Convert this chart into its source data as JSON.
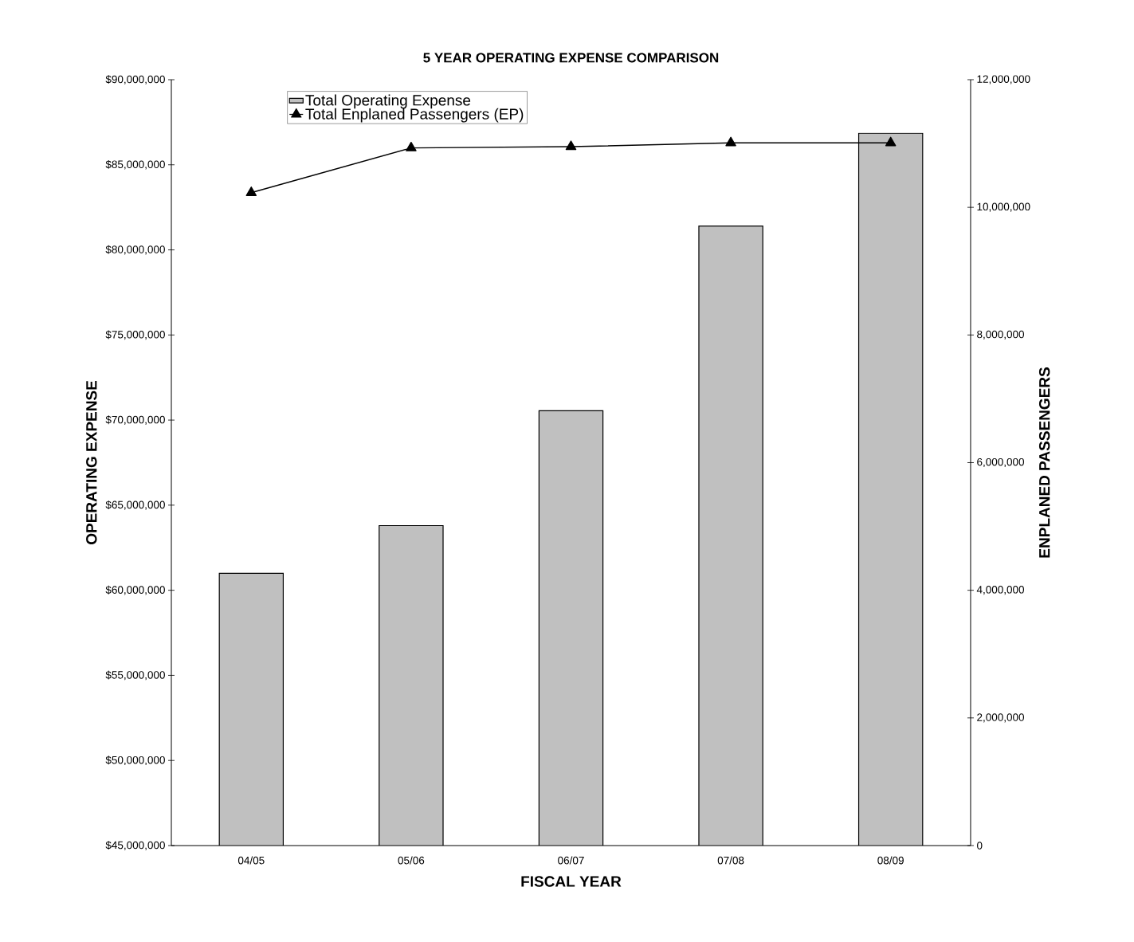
{
  "chart_data": {
    "type": "bar",
    "title": "5 YEAR OPERATING EXPENSE COMPARISON",
    "xlabel": "FISCAL YEAR",
    "ylabel": "OPERATING EXPENSE",
    "y2label": "ENPLANED PASSENGERS",
    "categories": [
      "04/05",
      "05/06",
      "06/07",
      "07/08",
      "08/09"
    ],
    "series": [
      {
        "name": "Total Operating Expense",
        "color": "#c0c0c0",
        "values": [
          61000000,
          63800000,
          70550000,
          81400000,
          86850000
        ]
      },
      {
        "name": "Total Enplaned Passengers  (EP)",
        "type": "line",
        "axis": "y2",
        "color": "#000000",
        "marker": "triangle",
        "values": [
          10230000,
          10930000,
          10950000,
          11010000,
          11010000
        ]
      }
    ],
    "ylim": [
      45000000,
      90000000
    ],
    "yticks": [
      {
        "value": 45000000,
        "label": "$45,000,000"
      },
      {
        "value": 50000000,
        "label": "$50,000,000"
      },
      {
        "value": 55000000,
        "label": "$55,000,000"
      },
      {
        "value": 60000000,
        "label": "$60,000,000"
      },
      {
        "value": 65000000,
        "label": "$65,000,000"
      },
      {
        "value": 70000000,
        "label": "$70,000,000"
      },
      {
        "value": 75000000,
        "label": "$75,000,000"
      },
      {
        "value": 80000000,
        "label": "$80,000,000"
      },
      {
        "value": 85000000,
        "label": "$85,000,000"
      },
      {
        "value": 90000000,
        "label": "$90,000,000"
      }
    ],
    "y2lim": [
      0,
      12000000
    ],
    "y2ticks": [
      0,
      {
        "value": 2000000,
        "label": "2,000,000"
      },
      {
        "value": 4000000,
        "label": "4,000,000"
      },
      {
        "value": 6000000,
        "label": "6,000,000"
      },
      {
        "value": 8000000,
        "label": "8,000,000"
      },
      {
        "value": 10000000,
        "label": "10,000,000"
      },
      {
        "value": 12000000,
        "label": "12,000,000"
      }
    ],
    "legend": "top left",
    "grid": false
  }
}
